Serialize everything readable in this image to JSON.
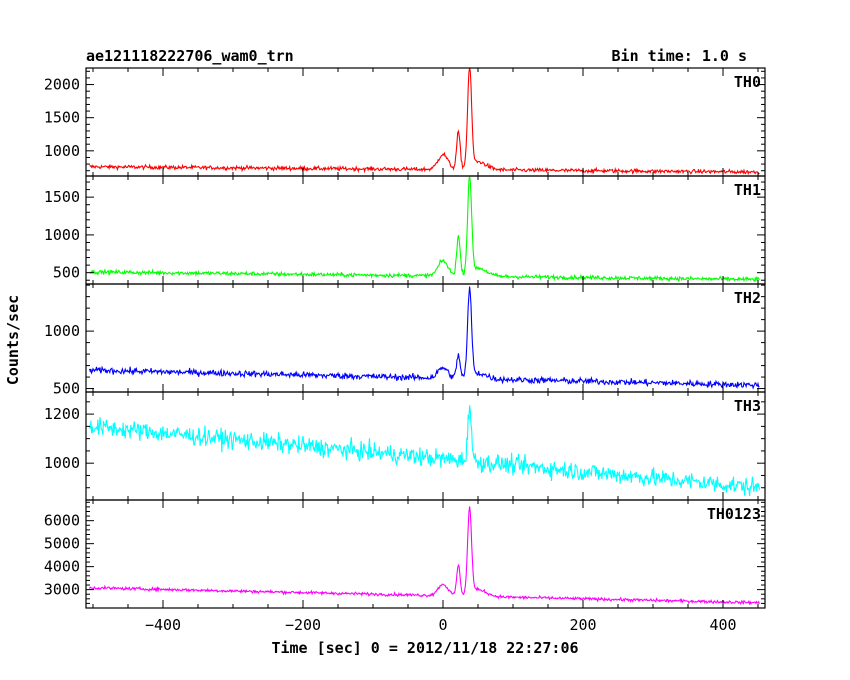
{
  "header": {
    "title": "ae121118222706_wam0_trn",
    "bin_time": "Bin time: 1.0 s"
  },
  "chart_data": {
    "type": "line",
    "xlabel": "Time [sec] 0 = 2012/11/18 22:27:06",
    "ylabel": "Counts/sec",
    "xlim": [
      -510,
      460
    ],
    "x_ticks": [
      -400,
      -200,
      0,
      200,
      400
    ],
    "x_tick_labels": [
      "−400",
      "−200",
      "0",
      "200",
      "400"
    ],
    "panels": [
      {
        "name": "TH0",
        "color": "#ff0000",
        "ylim": [
          620,
          2250
        ],
        "y_ticks": [
          1000,
          1500,
          2000
        ],
        "y_tick_labels": [
          "1000",
          "1500",
          "2000"
        ],
        "baseline_start": 760,
        "baseline_end": 680,
        "noise": 28,
        "features": [
          {
            "t": 0,
            "h": 230,
            "w": 7
          },
          {
            "t": 22,
            "h": 560,
            "w": 2.5
          },
          {
            "t": 38,
            "h": 1500,
            "w": 2.8
          },
          {
            "t": 50,
            "h": 120,
            "w": 12
          }
        ]
      },
      {
        "name": "TH1",
        "color": "#00ff00",
        "ylim": [
          350,
          1780
        ],
        "y_ticks": [
          500,
          1000,
          1500
        ],
        "y_tick_labels": [
          "500",
          "1000",
          "1500"
        ],
        "baseline_start": 510,
        "baseline_end": 410,
        "noise": 25,
        "features": [
          {
            "t": 0,
            "h": 200,
            "w": 7
          },
          {
            "t": 22,
            "h": 520,
            "w": 2.5
          },
          {
            "t": 38,
            "h": 1280,
            "w": 2.8
          },
          {
            "t": 50,
            "h": 110,
            "w": 12
          }
        ]
      },
      {
        "name": "TH2",
        "color": "#0000ff",
        "ylim": [
          470,
          1410
        ],
        "y_ticks": [
          500,
          1000
        ],
        "y_tick_labels": [
          "500",
          "1000"
        ],
        "baseline_start": 660,
        "baseline_end": 530,
        "noise": 26,
        "features": [
          {
            "t": 0,
            "h": 90,
            "w": 7
          },
          {
            "t": 22,
            "h": 200,
            "w": 2.5
          },
          {
            "t": 38,
            "h": 760,
            "w": 2.8
          },
          {
            "t": 50,
            "h": 50,
            "w": 12
          }
        ]
      },
      {
        "name": "TH3",
        "color": "#00ffff",
        "ylim": [
          850,
          1290
        ],
        "y_ticks": [
          1000,
          1200
        ],
        "y_tick_labels": [
          "1000",
          "1200"
        ],
        "baseline_start": 1150,
        "baseline_end": 900,
        "noise": 36,
        "features": [
          {
            "t": 38,
            "h": 230,
            "w": 2.5
          }
        ]
      },
      {
        "name": "TH0123",
        "color": "#ff00ff",
        "ylim": [
          2200,
          6900
        ],
        "y_ticks": [
          3000,
          4000,
          5000,
          6000
        ],
        "y_tick_labels": [
          "3000",
          "4000",
          "5000",
          "6000"
        ],
        "baseline_start": 3080,
        "baseline_end": 2430,
        "noise": 60,
        "features": [
          {
            "t": 0,
            "h": 500,
            "w": 7
          },
          {
            "t": 22,
            "h": 1300,
            "w": 2.5
          },
          {
            "t": 38,
            "h": 3700,
            "w": 2.8
          },
          {
            "t": 50,
            "h": 300,
            "w": 12
          }
        ]
      }
    ]
  }
}
